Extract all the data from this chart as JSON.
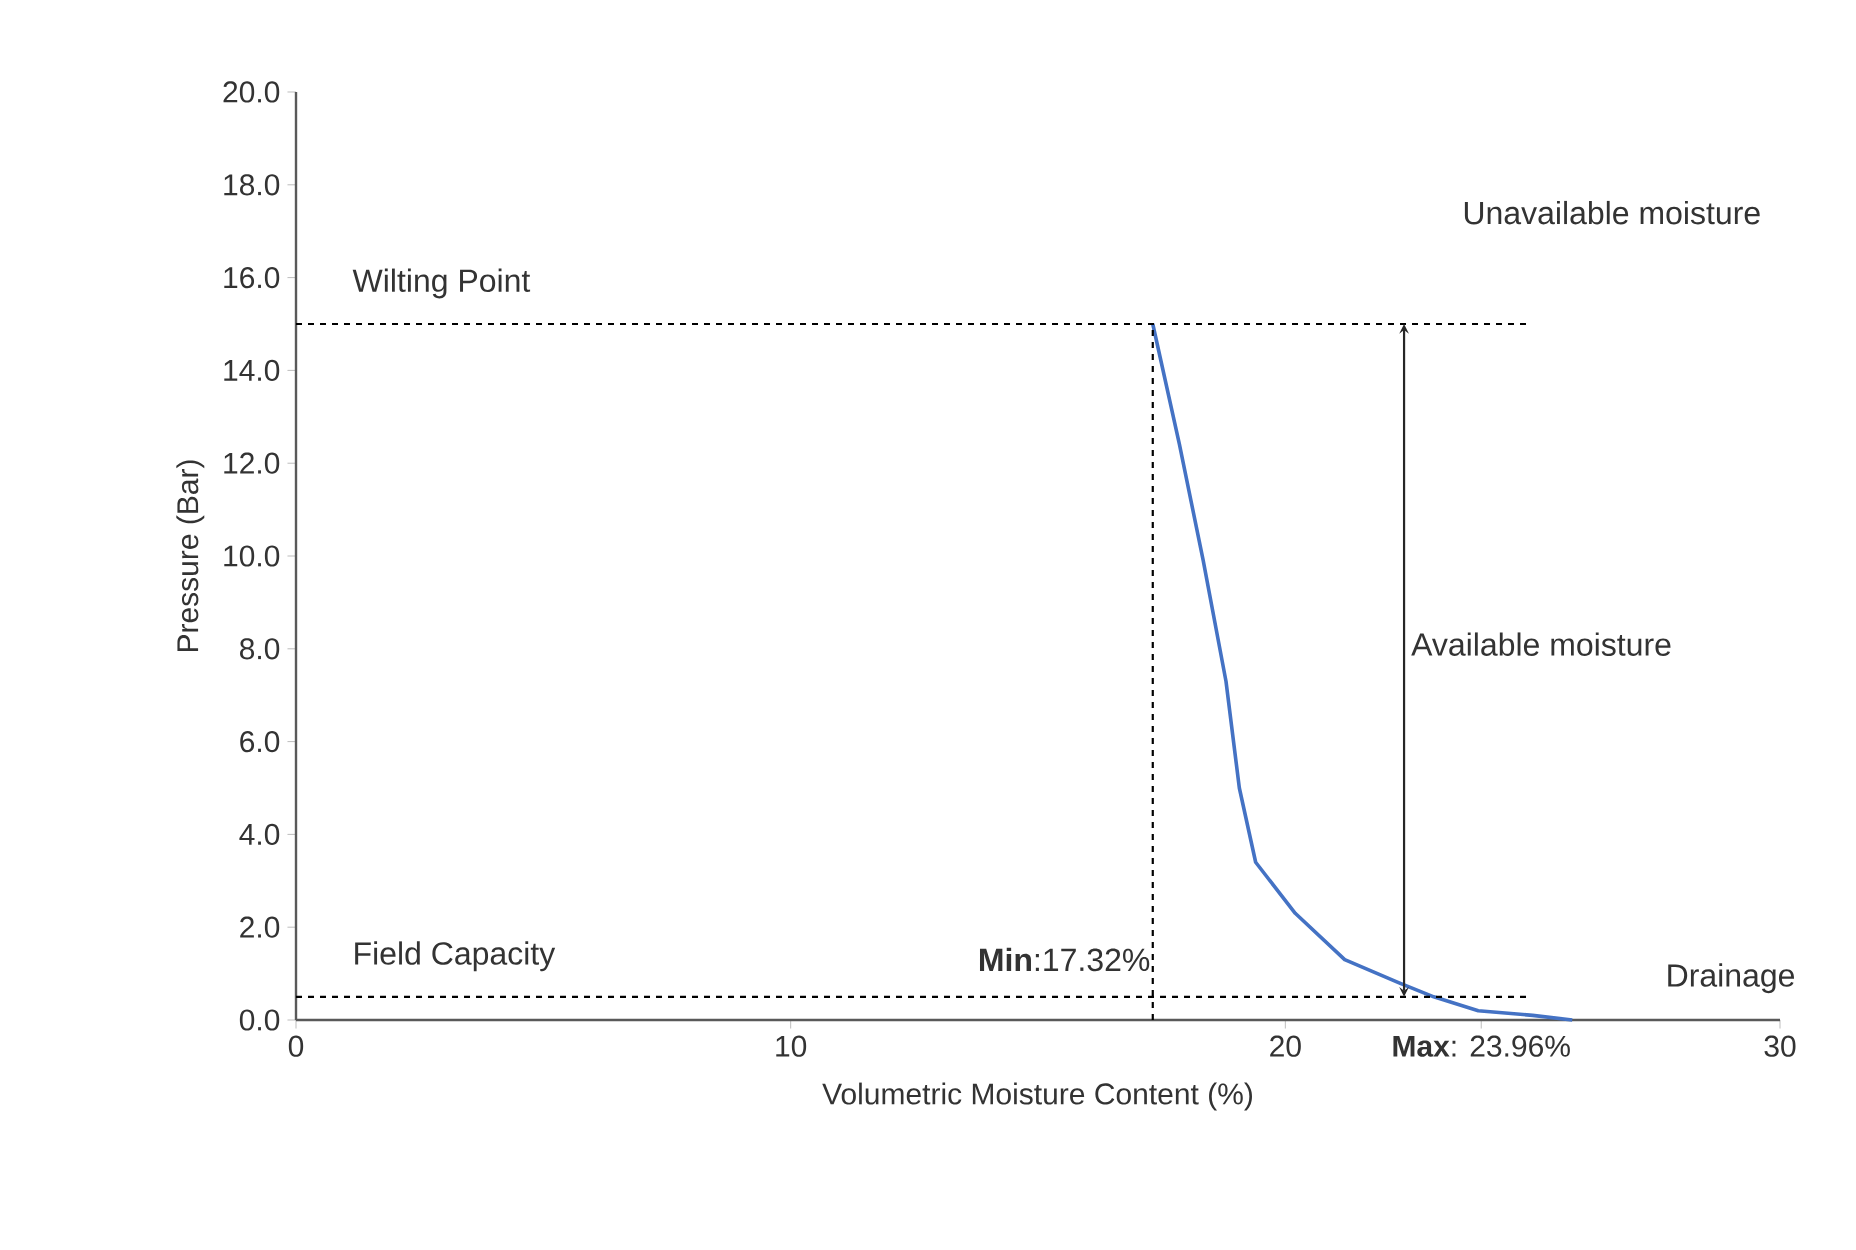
{
  "chart_data": {
    "type": "line",
    "xlabel": "Volumetric Moisture Content (%)",
    "ylabel": "Pressure (Bar)",
    "x": [
      17.32,
      17.86,
      18.34,
      18.8,
      19.07,
      19.4,
      20.2,
      21.2,
      22.3,
      23.0,
      23.9,
      25.0,
      25.8
    ],
    "series": [
      {
        "color": "#4472c4",
        "values": [
          15.0,
          12.4,
          9.9,
          7.3,
          5.0,
          3.4,
          2.3,
          1.3,
          0.8,
          0.5,
          0.2,
          0.1,
          0.0
        ]
      }
    ],
    "xlim": [
      0,
      30
    ],
    "xticks": [
      0,
      10,
      20,
      {
        "value": 23.96,
        "label": "**Max**: 23.96%"
      },
      30
    ],
    "ylim": [
      0,
      20
    ],
    "yticks": [
      {
        "value": 0,
        "label": "0.0"
      },
      {
        "value": 2,
        "label": "2.0"
      },
      {
        "value": 4,
        "label": "4.0"
      },
      {
        "value": 6,
        "label": "6.0"
      },
      {
        "value": 8,
        "label": "8.0"
      },
      {
        "value": 10,
        "label": "10.0"
      },
      {
        "value": 12,
        "label": "12.0"
      },
      {
        "value": 14,
        "label": "14.0"
      },
      {
        "value": 16,
        "label": "16.0"
      },
      {
        "value": 18,
        "label": "18.0"
      },
      {
        "value": 20,
        "label": "20.0"
      }
    ],
    "ref_lines": [
      {
        "axis": "y",
        "value": 15,
        "label": "Wilting Point",
        "line_style": "dashed",
        "color": "#000000"
      },
      {
        "axis": "y",
        "value": 0.5,
        "label": "Field Capacity",
        "line_style": "dashed",
        "color": "#000000"
      },
      {
        "axis": "x",
        "value": 17.32,
        "label": "**Min**:17.32%",
        "line_style": "dashed",
        "color": "#000000"
      }
    ],
    "annotations": [
      "Unavailable moisture",
      "Available moisture",
      "Drainage"
    ],
    "marker": "none",
    "line_style": "solid"
  }
}
